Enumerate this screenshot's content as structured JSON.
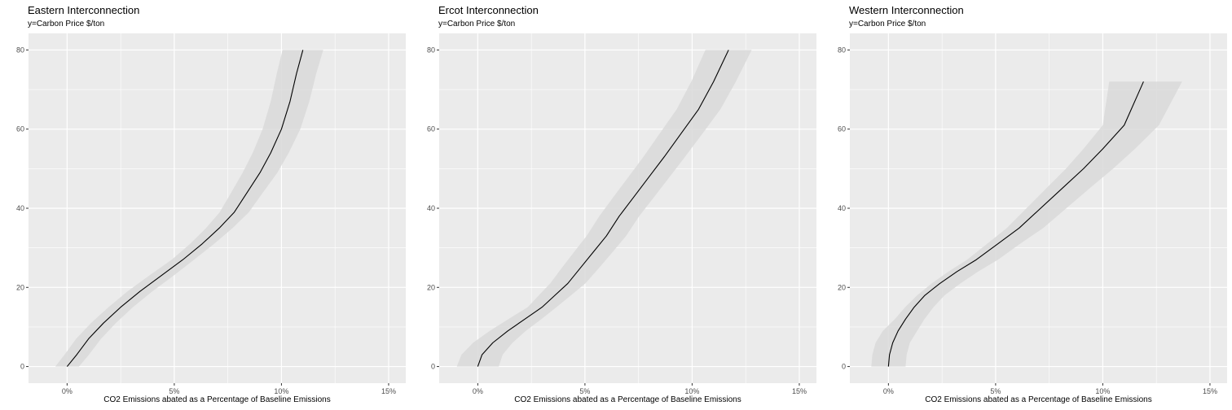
{
  "chart_data": [
    {
      "type": "line",
      "title": "Eastern Interconnection",
      "subtitle": "y=Carbon Price $/ton",
      "xlabel": "CO2 Emissions abated as a Percentage of Baseline Emissions",
      "ylabel": "",
      "xlim": [
        -0.018,
        0.158
      ],
      "ylim": [
        -4.2,
        84.2
      ],
      "x_ticks": [
        0,
        0.05,
        0.1,
        0.15
      ],
      "x_tick_labels": [
        "0%",
        "5%",
        "10%",
        "15%"
      ],
      "y_ticks": [
        0,
        20,
        40,
        60,
        80
      ],
      "y_tick_labels": [
        "0",
        "20",
        "40",
        "60",
        "80"
      ],
      "grid": true,
      "legend": "none",
      "colors": {
        "panel": "#ebebeb",
        "grid": "#ffffff",
        "line": "#000000",
        "ribbon": "#d9d9d9"
      },
      "series": [
        {
          "x": [
            0,
            0.0045,
            0.01,
            0.017,
            0.025,
            0.034,
            0.044,
            0.054,
            0.063,
            0.071,
            0.078,
            0.084,
            0.09,
            0.095,
            0.1,
            0.104,
            0.107,
            0.11
          ],
          "y": [
            0,
            3,
            7,
            11,
            15,
            19,
            23,
            27,
            31,
            35,
            39,
            44,
            49,
            54,
            60,
            67,
            74,
            80
          ],
          "ymin_x": [
            -0.0055,
            -0.0012,
            0.0042,
            0.0112,
            0.0193,
            0.0282,
            0.0383,
            0.0488,
            0.0574,
            0.0648,
            0.0712,
            0.0766,
            0.0819,
            0.0866,
            0.0912,
            0.095,
            0.0978,
            0.1005
          ],
          "ymax_x": [
            0.0055,
            0.0102,
            0.0158,
            0.0228,
            0.0307,
            0.0398,
            0.0497,
            0.0592,
            0.0686,
            0.0772,
            0.0848,
            0.0914,
            0.0981,
            0.1034,
            0.1088,
            0.113,
            0.1162,
            0.1195
          ]
        }
      ]
    },
    {
      "type": "line",
      "title": "Ercot Interconnection",
      "subtitle": "y=Carbon Price $/ton",
      "xlabel": "CO2 Emissions abated as a Percentage of Baseline Emissions",
      "ylabel": "",
      "xlim": [
        -0.018,
        0.158
      ],
      "ylim": [
        -4.2,
        84.2
      ],
      "x_ticks": [
        0,
        0.05,
        0.1,
        0.15
      ],
      "x_tick_labels": [
        "0%",
        "5%",
        "10%",
        "15%"
      ],
      "y_ticks": [
        0,
        20,
        40,
        60,
        80
      ],
      "y_tick_labels": [
        "0",
        "20",
        "40",
        "60",
        "80"
      ],
      "grid": true,
      "legend": "none",
      "colors": {
        "panel": "#ebebeb",
        "grid": "#ffffff",
        "line": "#000000",
        "ribbon": "#d9d9d9"
      },
      "series": [
        {
          "x": [
            0,
            0.002,
            0.007,
            0.014,
            0.022,
            0.03,
            0.036,
            0.042,
            0.048,
            0.054,
            0.06,
            0.066,
            0.073,
            0.08,
            0.087,
            0.095,
            0.103,
            0.11,
            0.117
          ],
          "y": [
            0,
            3,
            6,
            9,
            12,
            15,
            18,
            21,
            25,
            29,
            33,
            38,
            43,
            48,
            53,
            59,
            65,
            72,
            80
          ],
          "ymin_x": [
            -0.0098,
            -0.0076,
            -0.0022,
            0.0056,
            0.0143,
            0.0233,
            0.0285,
            0.0338,
            0.0393,
            0.045,
            0.0508,
            0.0567,
            0.0635,
            0.0704,
            0.0773,
            0.085,
            0.0928,
            0.0996,
            0.1062
          ],
          "ymax_x": [
            0.0098,
            0.0116,
            0.0162,
            0.0224,
            0.0297,
            0.0367,
            0.0435,
            0.0502,
            0.0567,
            0.063,
            0.0692,
            0.0753,
            0.0825,
            0.0896,
            0.0967,
            0.105,
            0.1132,
            0.1204,
            0.1278
          ]
        }
      ]
    },
    {
      "type": "line",
      "title": "Western Interconnection",
      "subtitle": "y=Carbon Price $/ton",
      "xlabel": "CO2 Emissions abated as a Percentage of Baseline Emissions",
      "ylabel": "",
      "xlim": [
        -0.018,
        0.158
      ],
      "ylim": [
        -4.2,
        84.2
      ],
      "x_ticks": [
        0,
        0.05,
        0.1,
        0.15
      ],
      "x_tick_labels": [
        "0%",
        "5%",
        "10%",
        "15%"
      ],
      "y_ticks": [
        0,
        20,
        40,
        60,
        80
      ],
      "y_tick_labels": [
        "0",
        "20",
        "40",
        "60",
        "80"
      ],
      "grid": true,
      "legend": "none",
      "colors": {
        "panel": "#ebebeb",
        "grid": "#ffffff",
        "line": "#000000",
        "ribbon": "#d9d9d9"
      },
      "series": [
        {
          "x": [
            0,
            0.0005,
            0.002,
            0.0045,
            0.008,
            0.012,
            0.017,
            0.024,
            0.032,
            0.041,
            0.051,
            0.061,
            0.071,
            0.081,
            0.091,
            0.1,
            0.11,
            0.119
          ],
          "y": [
            0,
            3,
            6,
            9,
            12,
            15,
            18,
            21,
            24,
            27,
            31,
            35,
            40,
            45,
            50,
            55,
            61,
            72
          ],
          "ymin_x": [
            -0.008,
            -0.0075,
            -0.006,
            -0.0026,
            0.003,
            0.0078,
            0.0134,
            0.0202,
            0.028,
            0.0367,
            0.046,
            0.0552,
            0.0644,
            0.0736,
            0.0828,
            0.091,
            0.1,
            0.103
          ],
          "ymax_x": [
            0.008,
            0.0085,
            0.01,
            0.0134,
            0.0168,
            0.021,
            0.0262,
            0.0336,
            0.0418,
            0.0511,
            0.0614,
            0.0722,
            0.083,
            0.0938,
            0.1048,
            0.115,
            0.1262,
            0.137
          ]
        }
      ]
    }
  ]
}
